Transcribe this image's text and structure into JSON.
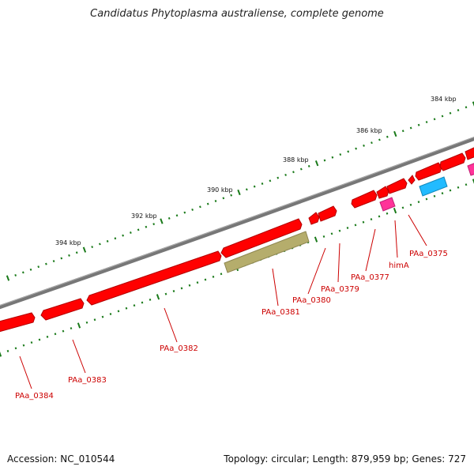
{
  "title": "Candidatus Phytoplasma australiense, complete genome",
  "footer": {
    "accession": "Accession: NC_010544",
    "summary": "Topology: circular; Length: 879,959 bp; Genes: 727"
  },
  "colors": {
    "gene_red": "#ff0000",
    "gene_magenta": "#ff3399",
    "gene_cyan": "#22bbff",
    "gene_olive": "#b5ad6c",
    "backbone": "#808080",
    "ticks": "#1a7a1a",
    "label": "#cc0000"
  },
  "scale_labels": [
    "384 kbp",
    "386 kbp",
    "388 kbp",
    "390 kbp",
    "392 kbp",
    "394 kbp"
  ],
  "gene_labels": [
    "PAa_0375",
    "himA",
    "PAa_0377",
    "PAa_0379",
    "PAa_0380",
    "PAa_0381",
    "PAa_0382",
    "PAa_0383",
    "PAa_0384"
  ]
}
